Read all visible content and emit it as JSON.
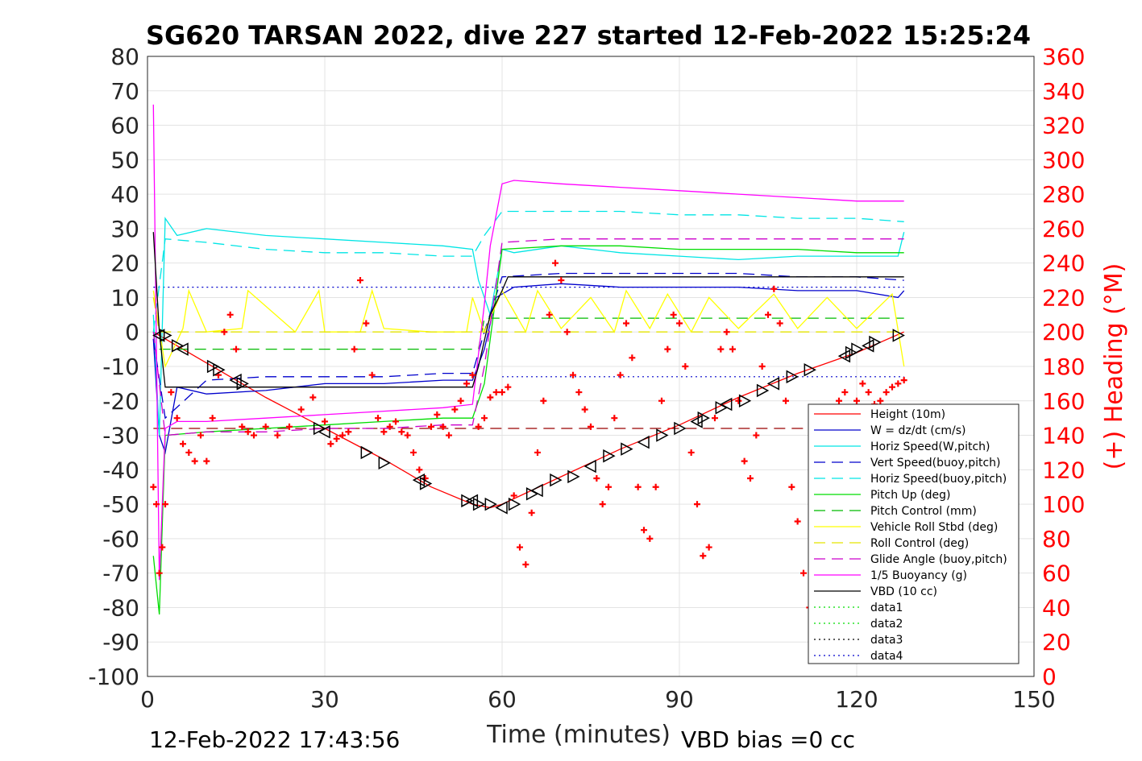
{
  "chart_data": {
    "type": "line",
    "title": "SG620 TARSAN 2022, dive 227 started 12-Feb-2022 15:25:24",
    "xlabel": "Time (minutes)",
    "ylabel": "",
    "y2label": "(+) Heading (°M)",
    "xlim": [
      0,
      150
    ],
    "ylim": [
      -100,
      80
    ],
    "y2lim": [
      0,
      360
    ],
    "x_ticks": [
      "0",
      "30",
      "60",
      "90",
      "120",
      "150"
    ],
    "y_ticks": [
      "80",
      "70",
      "60",
      "50",
      "40",
      "30",
      "20",
      "10",
      "0",
      "-10",
      "-20",
      "-30",
      "-40",
      "-50",
      "-60",
      "-70",
      "-80",
      "-90",
      "-100"
    ],
    "y2_ticks": [
      "360",
      "340",
      "320",
      "300",
      "280",
      "260",
      "240",
      "220",
      "200",
      "180",
      "160",
      "140",
      "120",
      "100",
      "80",
      "60",
      "40",
      "20",
      "0"
    ],
    "grid": true,
    "legend_position": "bottom-right",
    "footer_left": "12-Feb-2022 17:43:56",
    "footer_right": "VBD bias =0 cc",
    "colors": {
      "height": "#ff0000",
      "w": "#0000cc",
      "horiz_w": "#00e5e5",
      "vert_buoy": "#0000cc",
      "horiz_buoy": "#00e5e5",
      "pitch": "#00dd00",
      "pitch_ctrl": "#00bb00",
      "roll": "#ffff00",
      "roll_ctrl": "#e5e500",
      "glide": "#cc00cc",
      "buoyancy": "#ff00ff",
      "vbd": "#000000",
      "heading": "#ff0000"
    },
    "series": [
      {
        "name": "Height (10m)",
        "style": "solid",
        "color": "height",
        "x": [
          1,
          3,
          10,
          20,
          30,
          40,
          48,
          55,
          58,
          60,
          70,
          80,
          90,
          100,
          110,
          120,
          128
        ],
        "y": [
          0,
          -2,
          -9,
          -19,
          -28,
          -37,
          -45,
          -50,
          -51,
          -50,
          -42,
          -34,
          -27,
          -19,
          -12,
          -6,
          0
        ]
      },
      {
        "name": "W = dz/dt (cm/s)",
        "style": "solid",
        "color": "w",
        "x": [
          1,
          2,
          3,
          5,
          10,
          20,
          30,
          40,
          50,
          55,
          57,
          59,
          62,
          70,
          80,
          90,
          100,
          110,
          120,
          127,
          128
        ],
        "y": [
          -2,
          -30,
          -35,
          -16,
          -18,
          -17,
          -15,
          -15,
          -14,
          -14,
          -5,
          10,
          13,
          14,
          13,
          13,
          13,
          12,
          12,
          10,
          12
        ]
      },
      {
        "name": "Horiz Speed(W,pitch)",
        "style": "solid",
        "color": "horiz_w",
        "x": [
          1,
          2,
          3,
          5,
          10,
          20,
          30,
          40,
          50,
          55,
          56,
          58,
          60,
          62,
          70,
          80,
          90,
          100,
          110,
          120,
          127,
          128
        ],
        "y": [
          5,
          -30,
          33,
          28,
          30,
          28,
          27,
          26,
          25,
          24,
          15,
          5,
          24,
          23,
          25,
          23,
          22,
          21,
          22,
          22,
          22,
          29
        ]
      },
      {
        "name": "Vert Speed(buoy,pitch)",
        "style": "dashed",
        "color": "vert_buoy",
        "x": [
          1,
          3,
          10,
          20,
          30,
          40,
          50,
          55,
          57,
          60,
          70,
          80,
          90,
          100,
          110,
          120,
          128
        ],
        "y": [
          -2,
          -25,
          -14,
          -13,
          -13,
          -13,
          -12,
          -12,
          0,
          16,
          17,
          17,
          17,
          17,
          16,
          16,
          15
        ]
      },
      {
        "name": "Horiz Speed(buoy,pitch)",
        "style": "dashed",
        "color": "horiz_buoy",
        "x": [
          1,
          3,
          10,
          20,
          30,
          40,
          50,
          55,
          57,
          60,
          70,
          80,
          90,
          100,
          110,
          120,
          128
        ],
        "y": [
          0,
          27,
          26,
          24,
          23,
          23,
          22,
          22,
          28,
          35,
          35,
          35,
          34,
          34,
          33,
          33,
          32
        ]
      },
      {
        "name": "Pitch Up (deg)",
        "style": "solid",
        "color": "pitch",
        "x": [
          1,
          2,
          3,
          10,
          20,
          30,
          40,
          50,
          55,
          57,
          60,
          70,
          80,
          90,
          100,
          110,
          120,
          128
        ],
        "y": [
          -65,
          -82,
          -30,
          -29,
          -28,
          -27,
          -26,
          -25,
          -25,
          -15,
          24,
          25,
          25,
          24,
          24,
          24,
          23,
          23
        ]
      },
      {
        "name": "Pitch Control (mm)",
        "style": "dashed",
        "color": "pitch_ctrl",
        "x": [
          2,
          56,
          57,
          128
        ],
        "y": [
          -5,
          -5,
          4,
          4
        ]
      },
      {
        "name": "Vehicle Roll Stbd (deg)",
        "style": "solid",
        "color": "roll",
        "x": [
          1,
          3,
          6,
          7,
          10,
          16,
          17,
          25,
          29,
          30,
          36,
          38,
          40,
          48,
          54,
          55,
          57,
          60,
          64,
          66,
          70,
          75,
          79,
          81,
          85,
          88,
          92,
          95,
          100,
          106,
          110,
          115,
          120,
          126,
          128
        ],
        "y": [
          12,
          -10,
          1,
          12,
          0,
          1,
          12,
          0,
          12,
          0,
          0,
          12,
          1,
          0,
          0,
          10,
          0,
          12,
          0,
          12,
          1,
          10,
          0,
          12,
          1,
          11,
          0,
          10,
          1,
          11,
          1,
          10,
          1,
          11,
          -10
        ]
      },
      {
        "name": "Roll Control (deg)",
        "style": "dashed",
        "color": "roll_ctrl",
        "x": [
          1,
          2,
          57,
          60,
          128
        ],
        "y": [
          10,
          0,
          0,
          0,
          0
        ]
      },
      {
        "name": "Glide Angle (buoy,pitch)",
        "style": "dashed",
        "color": "glide",
        "x": [
          1,
          3,
          10,
          20,
          30,
          40,
          50,
          55,
          57,
          60,
          70,
          80,
          90,
          100,
          110,
          120,
          128
        ],
        "y": [
          0,
          -30,
          -29,
          -29,
          -28,
          -28,
          -27,
          -27,
          -10,
          26,
          27,
          27,
          27,
          27,
          27,
          27,
          27
        ]
      },
      {
        "name": "1/5 Buoyancy (g)",
        "style": "solid",
        "color": "buoyancy",
        "x": [
          1,
          2,
          3,
          5,
          10,
          20,
          30,
          40,
          50,
          55,
          57,
          58,
          60,
          62,
          70,
          80,
          90,
          100,
          110,
          120,
          125,
          128
        ],
        "y": [
          66,
          -72,
          -28,
          -26,
          -26,
          -25,
          -24,
          -23,
          -22,
          -21,
          8,
          25,
          43,
          44,
          43,
          42,
          41,
          40,
          39,
          38,
          38,
          38
        ]
      },
      {
        "name": "VBD (10 cc)",
        "style": "solid",
        "color": "vbd",
        "x": [
          1,
          2,
          3,
          55,
          56,
          58,
          60,
          61,
          128
        ],
        "y": [
          29,
          0,
          -16,
          -16,
          -10,
          5,
          12,
          16,
          16
        ]
      },
      {
        "name": "data1",
        "style": "dotted",
        "color": "pitch",
        "x": [],
        "y": []
      },
      {
        "name": "data2",
        "style": "dotted",
        "color": "pitch",
        "x": [],
        "y": []
      },
      {
        "name": "data3",
        "style": "dotted",
        "color": "vbd",
        "x": [],
        "y": []
      },
      {
        "name": "data4",
        "style": "dotted",
        "color": "w",
        "x": [],
        "y": []
      }
    ],
    "reference_lines": [
      {
        "color": "#0000cc",
        "style": "dotted",
        "y": 13,
        "x": [
          1,
          128
        ]
      },
      {
        "color": "#0000cc",
        "style": "dotted",
        "y": -13,
        "x": [
          60,
          128
        ]
      },
      {
        "color": "#990000",
        "style": "dashed",
        "y": -28,
        "x": [
          1,
          128
        ]
      }
    ],
    "heading": {
      "axis": "right",
      "marker": "+",
      "color": "heading",
      "x": [
        1,
        1.5,
        2,
        2.5,
        3,
        4,
        5,
        6,
        7,
        8,
        9,
        10,
        11,
        12,
        13,
        14,
        15,
        16,
        17,
        18,
        20,
        22,
        24,
        26,
        28,
        30,
        31,
        32,
        33,
        34,
        35,
        36,
        37,
        38,
        39,
        40,
        41,
        42,
        43,
        44,
        45,
        46,
        47,
        48,
        49,
        50,
        51,
        52,
        53,
        54,
        55,
        56,
        57,
        58,
        59,
        60,
        61,
        62,
        63,
        64,
        65,
        66,
        67,
        68,
        69,
        70,
        71,
        72,
        73,
        74,
        75,
        76,
        77,
        78,
        79,
        80,
        81,
        82,
        83,
        84,
        85,
        86,
        87,
        88,
        89,
        90,
        91,
        92,
        93,
        94,
        95,
        96,
        97,
        98,
        99,
        100,
        101,
        102,
        103,
        104,
        105,
        106,
        107,
        108,
        109,
        110,
        111,
        112,
        113,
        114,
        115,
        116,
        117,
        118,
        119,
        120,
        121,
        122,
        123,
        124,
        125,
        126,
        127,
        128
      ],
      "y": [
        110,
        100,
        60,
        75,
        100,
        165,
        150,
        135,
        130,
        125,
        140,
        125,
        150,
        175,
        200,
        210,
        190,
        145,
        142,
        140,
        145,
        140,
        145,
        155,
        162,
        148,
        135,
        138,
        140,
        142,
        190,
        230,
        205,
        175,
        150,
        142,
        145,
        148,
        142,
        140,
        130,
        120,
        115,
        145,
        152,
        145,
        140,
        155,
        160,
        170,
        175,
        145,
        150,
        162,
        165,
        165,
        168,
        105,
        75,
        65,
        95,
        130,
        160,
        210,
        240,
        230,
        200,
        175,
        165,
        155,
        145,
        115,
        100,
        110,
        150,
        175,
        205,
        185,
        110,
        85,
        80,
        110,
        160,
        190,
        210,
        205,
        180,
        130,
        100,
        70,
        75,
        150,
        190,
        200,
        190,
        160,
        125,
        115,
        140,
        180,
        210,
        225,
        205,
        160,
        110,
        90,
        60,
        40,
        25,
        50,
        90,
        130,
        160,
        165,
        150,
        160,
        170,
        165,
        158,
        160,
        165,
        168,
        170,
        172
      ]
    },
    "vbd_markers": {
      "marker": "triangle",
      "color": "vbd",
      "x": [
        2,
        3,
        5,
        6,
        11,
        12,
        15,
        16,
        29,
        30,
        37,
        40,
        46,
        47,
        54,
        55,
        56,
        58,
        60,
        62,
        65,
        66,
        69,
        72,
        75,
        78,
        81,
        84,
        87,
        90,
        93,
        94,
        97,
        98,
        101,
        104,
        106,
        109,
        112,
        118,
        119,
        120,
        122,
        123,
        127
      ],
      "y": [
        -1,
        -1,
        -4,
        -5,
        -10,
        -11,
        -14,
        -15,
        -28,
        -29,
        -35,
        -38,
        -43,
        -44,
        -49,
        -49,
        -50,
        -50,
        -51,
        -50,
        -47,
        -46,
        -43,
        -42,
        -39,
        -36,
        -34,
        -32,
        -30,
        -28,
        -26,
        -25,
        -22,
        -21,
        -20,
        -17,
        -15,
        -13,
        -11,
        -7,
        -6,
        -5,
        -4,
        -3,
        -1
      ]
    }
  }
}
